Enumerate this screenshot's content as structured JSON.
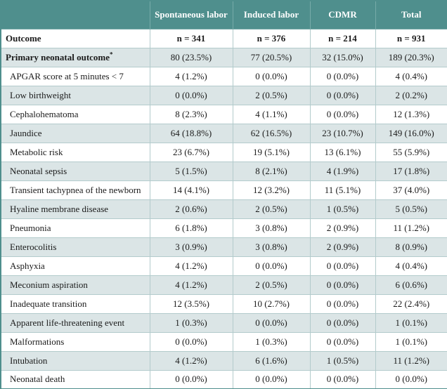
{
  "table": {
    "columns": [
      "",
      "Spontaneous labor",
      "Induced labor",
      "CDMR",
      "Total"
    ],
    "rows": [
      {
        "label": "Outcome",
        "bold": true,
        "row_bold": true,
        "indent": false,
        "values": [
          "n = 341",
          "n = 376",
          "n = 214",
          "n = 931"
        ]
      },
      {
        "label": "Primary neonatal outcome",
        "sup": "*",
        "bold": true,
        "row_bold": false,
        "indent": false,
        "values": [
          "80 (23.5%)",
          "77 (20.5%)",
          "32 (15.0%)",
          "189 (20.3%)"
        ]
      },
      {
        "label": "APGAR score at 5 minutes < 7",
        "bold": false,
        "row_bold": false,
        "indent": true,
        "values": [
          "4 (1.2%)",
          "0 (0.0%)",
          "0 (0.0%)",
          "4 (0.4%)"
        ]
      },
      {
        "label": "Low birthweight",
        "bold": false,
        "row_bold": false,
        "indent": true,
        "values": [
          "0 (0.0%)",
          "2 (0.5%)",
          "0 (0.0%)",
          "2 (0.2%)"
        ]
      },
      {
        "label": "Cephalohematoma",
        "bold": false,
        "row_bold": false,
        "indent": true,
        "values": [
          "8 (2.3%)",
          "4 (1.1%)",
          "0 (0.0%)",
          "12 (1.3%)"
        ]
      },
      {
        "label": "Jaundice",
        "bold": false,
        "row_bold": false,
        "indent": true,
        "values": [
          "64 (18.8%)",
          "62 (16.5%)",
          "23 (10.7%)",
          "149 (16.0%)"
        ]
      },
      {
        "label": "Metabolic risk",
        "bold": false,
        "row_bold": false,
        "indent": true,
        "values": [
          "23 (6.7%)",
          "19 (5.1%)",
          "13 (6.1%)",
          "55 (5.9%)"
        ]
      },
      {
        "label": "Neonatal sepsis",
        "bold": false,
        "row_bold": false,
        "indent": true,
        "values": [
          "5 (1.5%)",
          "8 (2.1%)",
          "4 (1.9%)",
          "17 (1.8%)"
        ]
      },
      {
        "label": "Transient tachypnea of the newborn",
        "bold": false,
        "row_bold": false,
        "indent": true,
        "values": [
          "14 (4.1%)",
          "12 (3.2%)",
          "11 (5.1%)",
          "37 (4.0%)"
        ]
      },
      {
        "label": "Hyaline membrane disease",
        "bold": false,
        "row_bold": false,
        "indent": true,
        "values": [
          "2 (0.6%)",
          "2 (0.5%)",
          "1 (0.5%)",
          "5 (0.5%)"
        ]
      },
      {
        "label": "Pneumonia",
        "bold": false,
        "row_bold": false,
        "indent": true,
        "values": [
          "6 (1.8%)",
          "3 (0.8%)",
          "2 (0.9%)",
          "11 (1.2%)"
        ]
      },
      {
        "label": "Enterocolitis",
        "bold": false,
        "row_bold": false,
        "indent": true,
        "values": [
          "3 (0.9%)",
          "3 (0.8%)",
          "2 (0.9%)",
          "8 (0.9%)"
        ]
      },
      {
        "label": "Asphyxia",
        "bold": false,
        "row_bold": false,
        "indent": true,
        "values": [
          "4 (1.2%)",
          "0 (0.0%)",
          "0 (0.0%)",
          "4 (0.4%)"
        ]
      },
      {
        "label": "Meconium aspiration",
        "bold": false,
        "row_bold": false,
        "indent": true,
        "values": [
          "4 (1.2%)",
          "2 (0.5%)",
          "0 (0.0%)",
          "6 (0.6%)"
        ]
      },
      {
        "label": "Inadequate transition",
        "bold": false,
        "row_bold": false,
        "indent": true,
        "values": [
          "12 (3.5%)",
          "10 (2.7%)",
          "0 (0.0%)",
          "22 (2.4%)"
        ]
      },
      {
        "label": "Apparent life-threatening event",
        "bold": false,
        "row_bold": false,
        "indent": true,
        "values": [
          "1 (0.3%)",
          "0 (0.0%)",
          "0 (0.0%)",
          "1 (0.1%)"
        ]
      },
      {
        "label": "Malformations",
        "bold": false,
        "row_bold": false,
        "indent": true,
        "values": [
          "0 (0.0%)",
          "1 (0.3%)",
          "0 (0.0%)",
          "1 (0.1%)"
        ]
      },
      {
        "label": "Intubation",
        "bold": false,
        "row_bold": false,
        "indent": true,
        "values": [
          "4 (1.2%)",
          "6 (1.6%)",
          "1 (0.5%)",
          "11 (1.2%)"
        ]
      },
      {
        "label": "Neonatal death",
        "bold": false,
        "row_bold": false,
        "indent": true,
        "values": [
          "0 (0.0%)",
          "0 (0.0%)",
          "0 (0.0%)",
          "0 (0.0%)"
        ]
      }
    ],
    "colors": {
      "header_teal": "#4f8f8d",
      "stripe": "#dbe5e6",
      "grid_line": "#b3cbcc"
    }
  }
}
